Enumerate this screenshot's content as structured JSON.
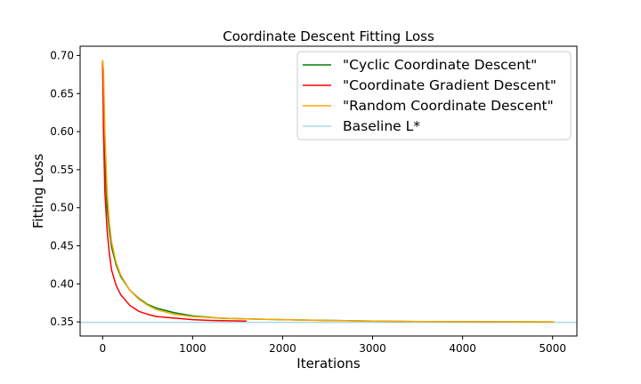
{
  "chart_data": {
    "type": "line",
    "title": "Coordinate Descent Fitting Loss",
    "xlabel": "Iterations",
    "ylabel": "Fitting Loss",
    "xlim": [
      -250,
      5270
    ],
    "ylim": [
      0.3315,
      0.7122
    ],
    "xticks": [
      0,
      1000,
      2000,
      3000,
      4000,
      5000
    ],
    "yticks": [
      0.35,
      0.4,
      0.45,
      0.5,
      0.55,
      0.6,
      0.65,
      0.7
    ],
    "xtick_labels": [
      "0",
      "1000",
      "2000",
      "3000",
      "4000",
      "5000"
    ],
    "ytick_labels": [
      "0.35",
      "0.40",
      "0.45",
      "0.50",
      "0.55",
      "0.60",
      "0.65",
      "0.70"
    ],
    "legend_position": "top-right",
    "grid": false,
    "series": [
      {
        "name": "\"Cyclic Coordinate Descent\"",
        "color": "#008000",
        "x": [
          0,
          10,
          25,
          50,
          75,
          100,
          150,
          200,
          300,
          400,
          500,
          600,
          800,
          1000,
          1300,
          1600,
          2000,
          2500,
          3000,
          3500,
          4000,
          4500,
          5000
        ],
        "y": [
          0.694,
          0.64,
          0.56,
          0.5,
          0.47,
          0.448,
          0.425,
          0.41,
          0.392,
          0.381,
          0.373,
          0.368,
          0.362,
          0.358,
          0.355,
          0.354,
          0.353,
          0.352,
          0.351,
          0.3505,
          0.3503,
          0.3502,
          0.35
        ]
      },
      {
        "name": "\"Coordinate Gradient Descent\"",
        "color": "#ff0000",
        "x": [
          0,
          10,
          25,
          50,
          75,
          100,
          150,
          200,
          300,
          400,
          500,
          600,
          800,
          1000,
          1200,
          1400,
          1600
        ],
        "y": [
          0.694,
          0.6,
          0.52,
          0.47,
          0.44,
          0.418,
          0.398,
          0.386,
          0.372,
          0.364,
          0.36,
          0.357,
          0.355,
          0.353,
          0.352,
          0.3515,
          0.351
        ]
      },
      {
        "name": "\"Random Coordinate Descent\"",
        "color": "#ffa500",
        "x": [
          0,
          10,
          25,
          50,
          75,
          100,
          150,
          200,
          300,
          400,
          500,
          600,
          800,
          1000,
          1300,
          1600,
          2000,
          2500,
          3000,
          3500,
          4000,
          4500,
          5020
        ],
        "y": [
          0.694,
          0.68,
          0.6,
          0.52,
          0.48,
          0.455,
          0.428,
          0.412,
          0.392,
          0.38,
          0.372,
          0.366,
          0.36,
          0.357,
          0.355,
          0.354,
          0.353,
          0.3518,
          0.351,
          0.3505,
          0.3503,
          0.3502,
          0.35
        ]
      },
      {
        "name": "Baseline L*",
        "color": "#add8e6",
        "kind": "hline",
        "y": 0.3495
      }
    ]
  }
}
